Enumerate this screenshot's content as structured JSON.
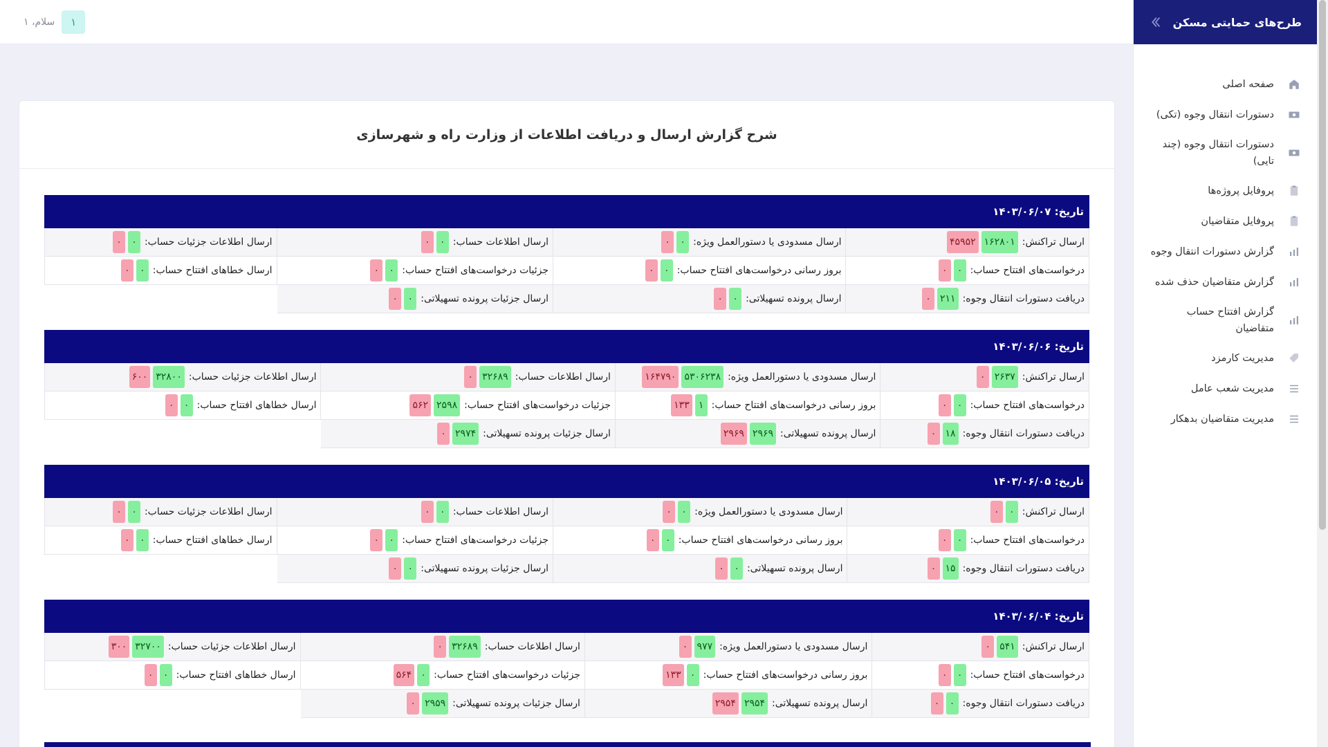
{
  "app": {
    "title": "طرح‌های حمایتی مسکن",
    "greeting": "سلام، ۱",
    "avatar": "۱"
  },
  "sidebar": {
    "items": [
      {
        "label": "صفحه اصلی",
        "icon": "home-icon"
      },
      {
        "label": "دستورات انتقال وجوه (تکی)",
        "icon": "cash-icon"
      },
      {
        "label": "دستورات انتقال وجوه (چند تایی)",
        "icon": "cash-icon"
      },
      {
        "label": "پروفایل پروژه‌ها",
        "icon": "clipboard-icon"
      },
      {
        "label": "پروفایل متقاضیان",
        "icon": "clipboard-icon"
      },
      {
        "label": "گزارش دستورات انتقال وجوه",
        "icon": "bar-chart-icon"
      },
      {
        "label": "گزارش متقاضیان حذف شده",
        "icon": "bar-chart-icon"
      },
      {
        "label": "گزارش افتتاح حساب متقاضیان",
        "icon": "bar-chart-icon"
      },
      {
        "label": "مدیریت کارمزد",
        "icon": "tag-icon"
      },
      {
        "label": "مدیریت شعب عامل",
        "icon": "list-icon"
      },
      {
        "label": "مدیریت متقاضیان بدهکار",
        "icon": "list-icon"
      }
    ]
  },
  "main": {
    "title": "شرح گزارش ارسال و دریافت اطلاعات از وزارت راه و شهرسازی"
  },
  "sections": [
    {
      "date": "تاریخ: ۱۴۰۳/۰۶/۰۷",
      "rows": [
        [
          {
            "label": "ارسال تراکنش:",
            "green": "۱۶۲۸۰۱",
            "red": "۴۵۹۵۲"
          },
          {
            "label": "ارسال مسدودی یا دستورالعمل ویژه:",
            "green": "۰",
            "red": "۰"
          },
          {
            "label": "ارسال اطلاعات حساب:",
            "green": "۰",
            "red": "۰"
          },
          {
            "label": "ارسال اطلاعات جزئیات حساب:",
            "green": "۰",
            "red": "۰"
          }
        ],
        [
          {
            "label": "درخواست‌های افتتاح حساب:",
            "green": "۰",
            "red": "۰"
          },
          {
            "label": "بروز رسانی درخواست‌های افتتاح حساب:",
            "green": "۰",
            "red": "۰"
          },
          {
            "label": "جزئیات درخواست‌های افتتاح حساب:",
            "green": "۰",
            "red": "۰"
          },
          {
            "label": "ارسال خطاهای افتتاح حساب:",
            "green": "۰",
            "red": "۰"
          }
        ],
        [
          {
            "label": "دریافت دستورات انتقال وجوه:",
            "green": "۲۱۱",
            "red": "۰"
          },
          {
            "label": "ارسال پرونده تسهیلاتی:",
            "green": "۰",
            "red": "۰"
          },
          {
            "label": "ارسال جزئیات پرونده تسهیلاتی:",
            "green": "۰",
            "red": "۰"
          }
        ]
      ]
    },
    {
      "date": "تاریخ: ۱۴۰۳/۰۶/۰۶",
      "rows": [
        [
          {
            "label": "ارسال تراکنش:",
            "green": "۲۶۳۷",
            "red": "۰"
          },
          {
            "label": "ارسال مسدودی یا دستورالعمل ویژه:",
            "green": "۵۳۰۶۲۳۸",
            "red": "۱۶۴۷۹۰"
          },
          {
            "label": "ارسال اطلاعات حساب:",
            "green": "۳۲۶۸۹",
            "red": "۰"
          },
          {
            "label": "ارسال اطلاعات جزئیات حساب:",
            "green": "۳۲۸۰۰",
            "red": "۶۰۰"
          }
        ],
        [
          {
            "label": "درخواست‌های افتتاح حساب:",
            "green": "۰",
            "red": "۰"
          },
          {
            "label": "بروز رسانی درخواست‌های افتتاح حساب:",
            "green": "۱",
            "red": "۱۳۳"
          },
          {
            "label": "جزئیات درخواست‌های افتتاح حساب:",
            "green": "۲۵۹۸",
            "red": "۵۶۲"
          },
          {
            "label": "ارسال خطاهای افتتاح حساب:",
            "green": "۰",
            "red": "۰"
          }
        ],
        [
          {
            "label": "دریافت دستورات انتقال وجوه:",
            "green": "۱۸",
            "red": "۰"
          },
          {
            "label": "ارسال پرونده تسهیلاتی:",
            "green": "۲۹۶۹",
            "red": "۲۹۶۹"
          },
          {
            "label": "ارسال جزئیات پرونده تسهیلاتی:",
            "green": "۲۹۷۴",
            "red": "۰"
          }
        ]
      ]
    },
    {
      "date": "تاریخ: ۱۴۰۳/۰۶/۰۵",
      "rows": [
        [
          {
            "label": "ارسال تراکنش:",
            "green": "۰",
            "red": "۰"
          },
          {
            "label": "ارسال مسدودی یا دستورالعمل ویژه:",
            "green": "۰",
            "red": "۰"
          },
          {
            "label": "ارسال اطلاعات حساب:",
            "green": "۰",
            "red": "۰"
          },
          {
            "label": "ارسال اطلاعات جزئیات حساب:",
            "green": "۰",
            "red": "۰"
          }
        ],
        [
          {
            "label": "درخواست‌های افتتاح حساب:",
            "green": "۰",
            "red": "۰"
          },
          {
            "label": "بروز رسانی درخواست‌های افتتاح حساب:",
            "green": "۰",
            "red": "۰"
          },
          {
            "label": "جزئیات درخواست‌های افتتاح حساب:",
            "green": "۰",
            "red": "۰"
          },
          {
            "label": "ارسال خطاهای افتتاح حساب:",
            "green": "۰",
            "red": "۰"
          }
        ],
        [
          {
            "label": "دریافت دستورات انتقال وجوه:",
            "green": "۱۵",
            "red": "۰"
          },
          {
            "label": "ارسال پرونده تسهیلاتی:",
            "green": "۰",
            "red": "۰"
          },
          {
            "label": "ارسال جزئیات پرونده تسهیلاتی:",
            "green": "۰",
            "red": "۰"
          }
        ]
      ]
    },
    {
      "date": "تاریخ: ۱۴۰۳/۰۶/۰۴",
      "rows": [
        [
          {
            "label": "ارسال تراکنش:",
            "green": "۵۴۱",
            "red": "۰"
          },
          {
            "label": "ارسال مسدودی یا دستورالعمل ویژه:",
            "green": "۹۷۷",
            "red": "۰"
          },
          {
            "label": "ارسال اطلاعات حساب:",
            "green": "۳۲۶۸۹",
            "red": "۰"
          },
          {
            "label": "ارسال اطلاعات جزئیات حساب:",
            "green": "۳۲۷۰۰",
            "red": "۳۰۰"
          }
        ],
        [
          {
            "label": "درخواست‌های افتتاح حساب:",
            "green": "۰",
            "red": "۰"
          },
          {
            "label": "بروز رسانی درخواست‌های افتتاح حساب:",
            "green": "۰",
            "red": "۱۳۳"
          },
          {
            "label": "جزئیات درخواست‌های افتتاح حساب:",
            "green": "۰",
            "red": "۵۶۴"
          },
          {
            "label": "ارسال خطاهای افتتاح حساب:",
            "green": "۰",
            "red": "۰"
          }
        ],
        [
          {
            "label": "دریافت دستورات انتقال وجوه:",
            "green": "۰",
            "red": "۰"
          },
          {
            "label": "ارسال پرونده تسهیلاتی:",
            "green": "۲۹۵۴",
            "red": "۲۹۵۴"
          },
          {
            "label": "ارسال جزئیات پرونده تسهیلاتی:",
            "green": "۲۹۵۹",
            "red": "۰"
          }
        ]
      ]
    }
  ]
}
